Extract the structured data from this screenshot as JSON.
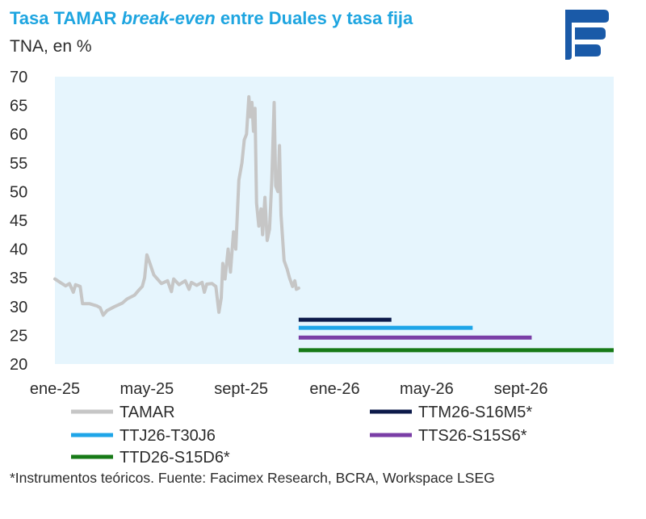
{
  "header": {
    "title_part1": "Tasa TAMAR ",
    "title_italic": "break-even",
    "title_part2": " entre Duales y tasa fija",
    "subtitle": "TNA, en %",
    "title_color": "#1ea5e0"
  },
  "logo": {
    "icon": "facimex-logo-icon",
    "color": "#1a5aa8"
  },
  "footnote": "*Instrumentos teóricos. Fuente: Facimex Research, BCRA, Workspace LSEG",
  "chart_data": {
    "type": "line",
    "title": "Tasa TAMAR break-even entre Duales y tasa fija",
    "ylabel": "TNA, en %",
    "ylim": [
      20,
      70
    ],
    "yticks": [
      20,
      25,
      30,
      35,
      40,
      45,
      50,
      55,
      60,
      65,
      70
    ],
    "xlim": [
      "2025-01-01",
      "2026-12-31"
    ],
    "xticks": [
      {
        "label": "ene-25",
        "date": "2025-01-01"
      },
      {
        "label": "may-25",
        "date": "2025-05-01"
      },
      {
        "label": "sept-25",
        "date": "2025-09-01"
      },
      {
        "label": "ene-26",
        "date": "2026-01-01"
      },
      {
        "label": "may-26",
        "date": "2026-05-01"
      },
      {
        "label": "sept-26",
        "date": "2026-09-01"
      }
    ],
    "grid": false,
    "legend_position": "bottom",
    "series": [
      {
        "name": "TAMAR",
        "kind": "line",
        "color": "#c6c6c6",
        "points": [
          [
            "2025-01-01",
            34.8
          ],
          [
            "2025-01-08",
            34.2
          ],
          [
            "2025-01-15",
            33.6
          ],
          [
            "2025-01-20",
            34.0
          ],
          [
            "2025-01-25",
            32.5
          ],
          [
            "2025-01-28",
            33.8
          ],
          [
            "2025-02-03",
            33.5
          ],
          [
            "2025-02-06",
            30.5
          ],
          [
            "2025-02-15",
            30.5
          ],
          [
            "2025-02-25",
            30.1
          ],
          [
            "2025-03-01",
            29.8
          ],
          [
            "2025-03-05",
            28.5
          ],
          [
            "2025-03-10",
            29.3
          ],
          [
            "2025-03-20",
            30.0
          ],
          [
            "2025-03-30",
            30.6
          ],
          [
            "2025-04-05",
            31.3
          ],
          [
            "2025-04-15",
            32.0
          ],
          [
            "2025-04-20",
            32.8
          ],
          [
            "2025-04-25",
            33.5
          ],
          [
            "2025-04-28",
            35.0
          ],
          [
            "2025-05-01",
            39.0
          ],
          [
            "2025-05-05",
            37.5
          ],
          [
            "2025-05-10",
            35.5
          ],
          [
            "2025-05-20",
            34.0
          ],
          [
            "2025-05-28",
            34.5
          ],
          [
            "2025-06-02",
            32.6
          ],
          [
            "2025-06-05",
            34.8
          ],
          [
            "2025-06-12",
            33.8
          ],
          [
            "2025-06-20",
            34.5
          ],
          [
            "2025-06-25",
            33.0
          ],
          [
            "2025-06-28",
            34.2
          ],
          [
            "2025-07-05",
            33.7
          ],
          [
            "2025-07-12",
            34.2
          ],
          [
            "2025-07-15",
            32.5
          ],
          [
            "2025-07-18",
            33.9
          ],
          [
            "2025-07-25",
            34.0
          ],
          [
            "2025-07-30",
            33.5
          ],
          [
            "2025-08-03",
            29.0
          ],
          [
            "2025-08-06",
            31.5
          ],
          [
            "2025-08-08",
            37.5
          ],
          [
            "2025-08-11",
            34.8
          ],
          [
            "2025-08-15",
            40.0
          ],
          [
            "2025-08-18",
            36.0
          ],
          [
            "2025-08-22",
            43.0
          ],
          [
            "2025-08-25",
            40.0
          ],
          [
            "2025-08-29",
            52.0
          ],
          [
            "2025-09-02",
            55.0
          ],
          [
            "2025-09-05",
            59.0
          ],
          [
            "2025-09-08",
            60.0
          ],
          [
            "2025-09-11",
            66.5
          ],
          [
            "2025-09-13",
            63.0
          ],
          [
            "2025-09-15",
            65.5
          ],
          [
            "2025-09-17",
            60.5
          ],
          [
            "2025-09-19",
            64.5
          ],
          [
            "2025-09-21",
            48.0
          ],
          [
            "2025-09-24",
            44.0
          ],
          [
            "2025-09-27",
            47.0
          ],
          [
            "2025-09-29",
            42.5
          ],
          [
            "2025-10-02",
            49.0
          ],
          [
            "2025-10-05",
            41.5
          ],
          [
            "2025-10-08",
            43.5
          ],
          [
            "2025-10-11",
            52.0
          ],
          [
            "2025-10-14",
            65.5
          ],
          [
            "2025-10-16",
            51.0
          ],
          [
            "2025-10-19",
            50.0
          ],
          [
            "2025-10-21",
            58.0
          ],
          [
            "2025-10-23",
            46.0
          ],
          [
            "2025-10-27",
            38.0
          ],
          [
            "2025-10-31",
            36.5
          ],
          [
            "2025-11-03",
            35.0
          ],
          [
            "2025-11-07",
            33.5
          ],
          [
            "2025-11-10",
            34.5
          ],
          [
            "2025-11-12",
            33.0
          ],
          [
            "2025-11-15",
            33.2
          ]
        ]
      },
      {
        "name": "TTM26-S16M5*",
        "kind": "segment",
        "color": "#0c1a4a",
        "value": 27.7,
        "start": "2025-11-15",
        "end": "2026-03-16"
      },
      {
        "name": "TTJ26-T30J6",
        "kind": "segment",
        "color": "#1ea5e8",
        "value": 26.3,
        "start": "2025-11-15",
        "end": "2026-06-30"
      },
      {
        "name": "TTS26-S15S6*",
        "kind": "segment",
        "color": "#7a3ea6",
        "value": 24.6,
        "start": "2025-11-15",
        "end": "2026-09-15"
      },
      {
        "name": "TTD26-S15D6*",
        "kind": "segment",
        "color": "#177a17",
        "value": 22.4,
        "start": "2025-11-15",
        "end": "2026-12-31"
      }
    ]
  }
}
